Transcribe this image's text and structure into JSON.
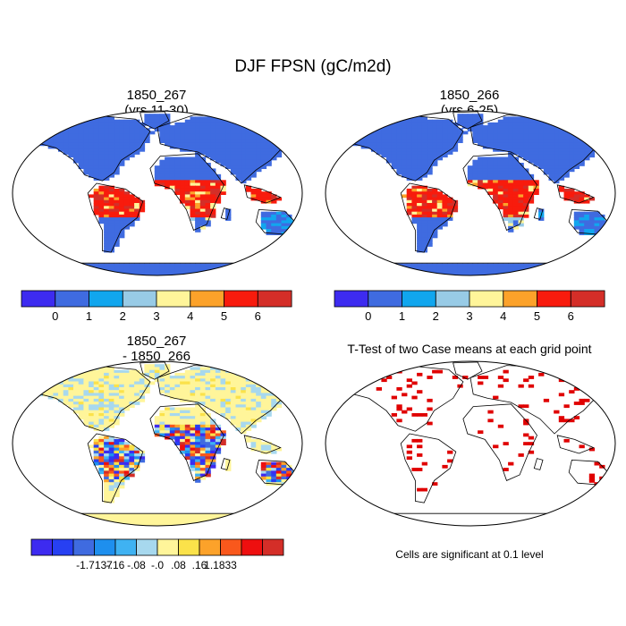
{
  "figure": {
    "title": "DJF FPSN (gC/m2d)"
  },
  "panels": [
    {
      "title_line1": "1850_267",
      "title_line2": "(yrs 11-30)"
    },
    {
      "title_line1": "1850_266",
      "title_line2": "(yrs 6-25)"
    },
    {
      "title_line1": "1850_267",
      "title_line2": "- 1850_266"
    },
    {
      "title_line1": "T-Test of two Case means at each grid point",
      "title_line2": ""
    }
  ],
  "colorbar_top": {
    "colors": [
      "#3d2bf0",
      "#3f6be0",
      "#11a6ee",
      "#98cbe6",
      "#fff59a",
      "#fca22a",
      "#f81b0d",
      "#d42e28"
    ],
    "labels": [
      "0",
      "1",
      "2",
      "3",
      "4",
      "5",
      "6"
    ]
  },
  "colorbar_diff": {
    "colors": [
      "#3d2bf0",
      "#2740f2",
      "#3f6be0",
      "#1e8fee",
      "#3fb2f2",
      "#a7d8ee",
      "#fff59a",
      "#fbe24a",
      "#fca22a",
      "#f9581c",
      "#ee0f0f",
      "#d42e28"
    ],
    "labels": [
      "-1.7137",
      "-.16",
      "-.08",
      "-.0",
      ".08",
      ".16",
      "1.1833"
    ]
  },
  "significance_note": "Cells are significant at 0.1 level",
  "map_palette": {
    "ocean": "#ffffff",
    "land_low": "#3f6be0",
    "tropics_high": "#f81b0d",
    "diff_base": "#fff59a",
    "signif": "#e00000"
  }
}
